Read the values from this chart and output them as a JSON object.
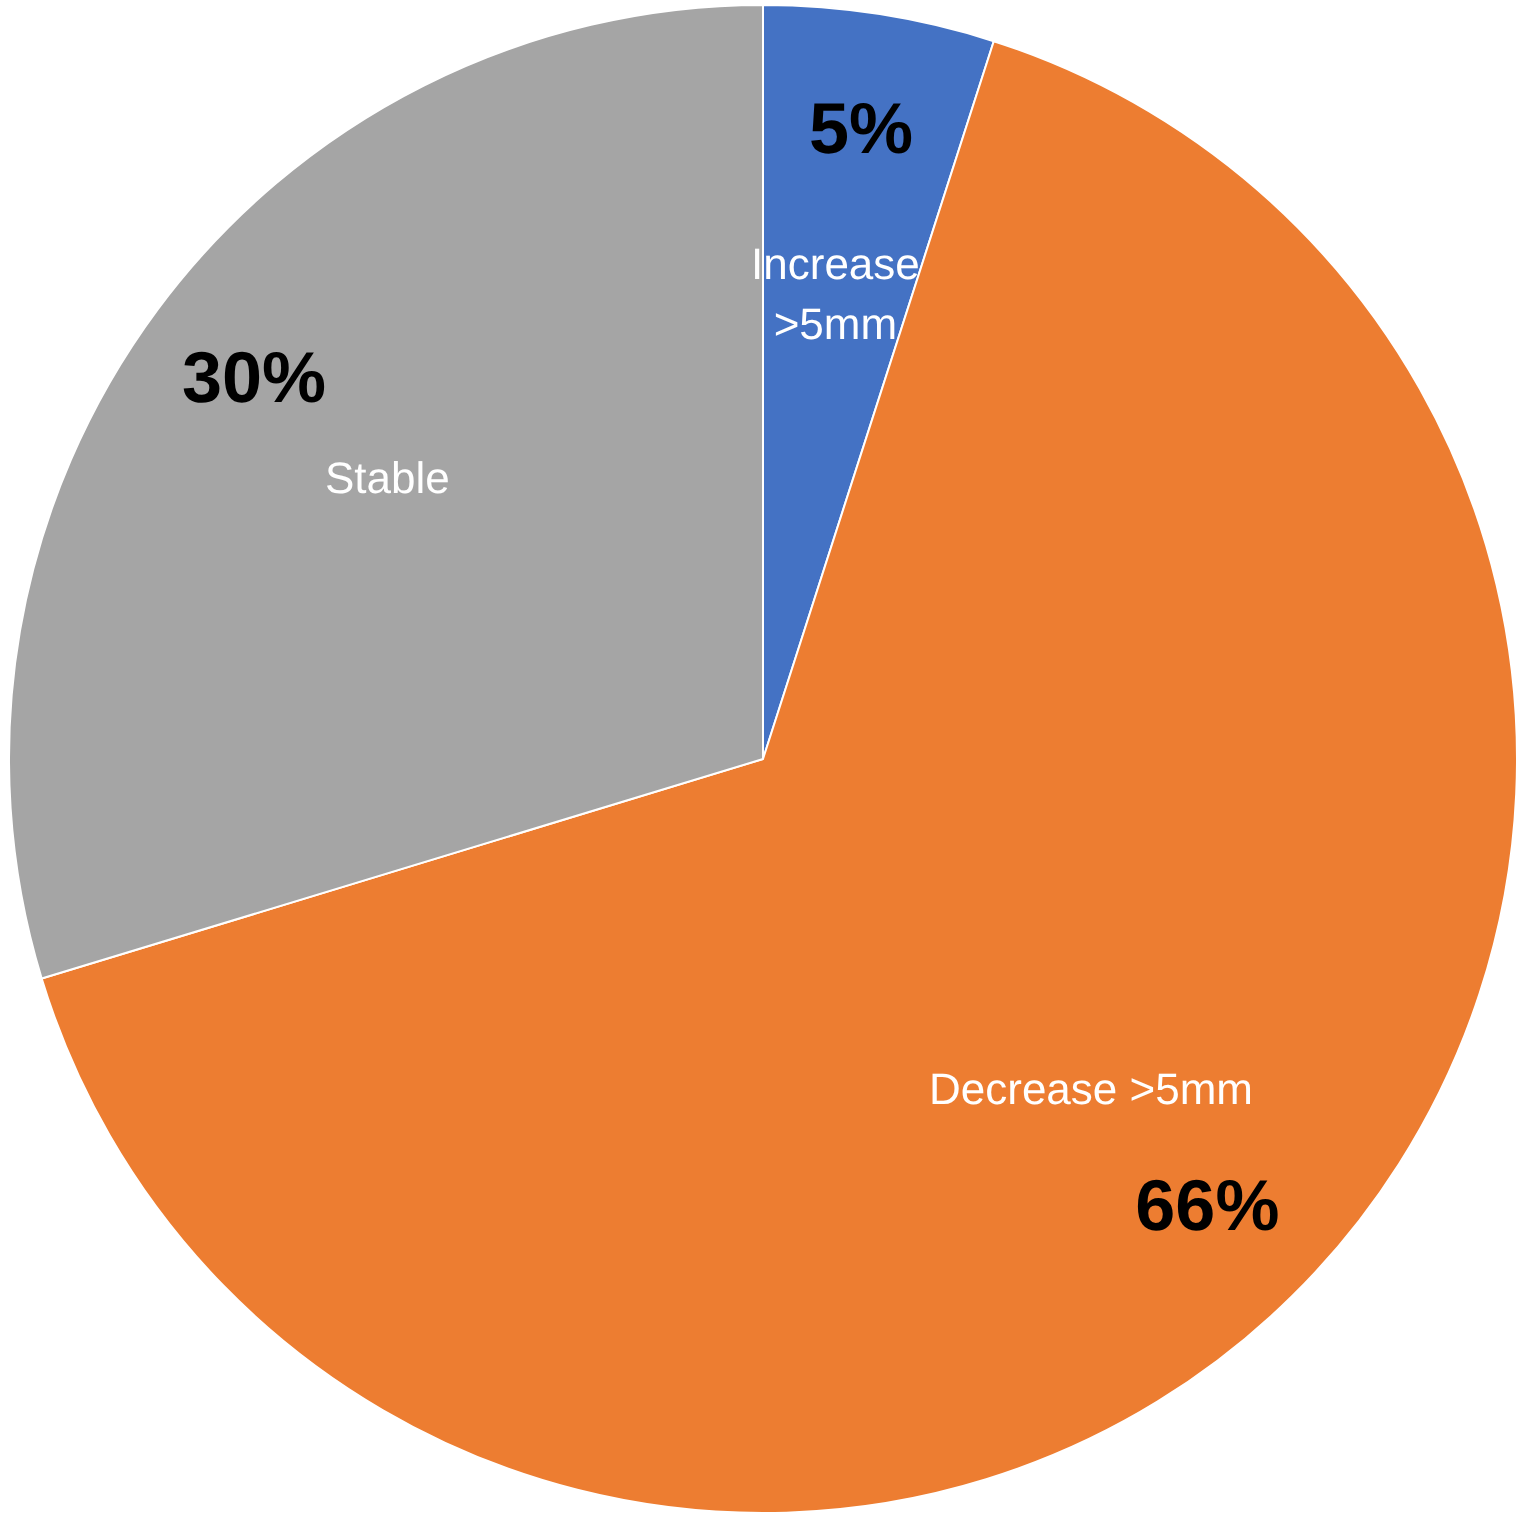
{
  "chart_data": {
    "type": "pie",
    "categories": [
      "Increase >5mm",
      "Decrease >5mm",
      "Stable"
    ],
    "values": [
      5,
      66,
      30
    ],
    "value_labels": [
      "5%",
      "66%",
      "30%"
    ],
    "colors": [
      "#4472c4",
      "#ed7d31",
      "#a5a5a5"
    ],
    "legend": false
  }
}
